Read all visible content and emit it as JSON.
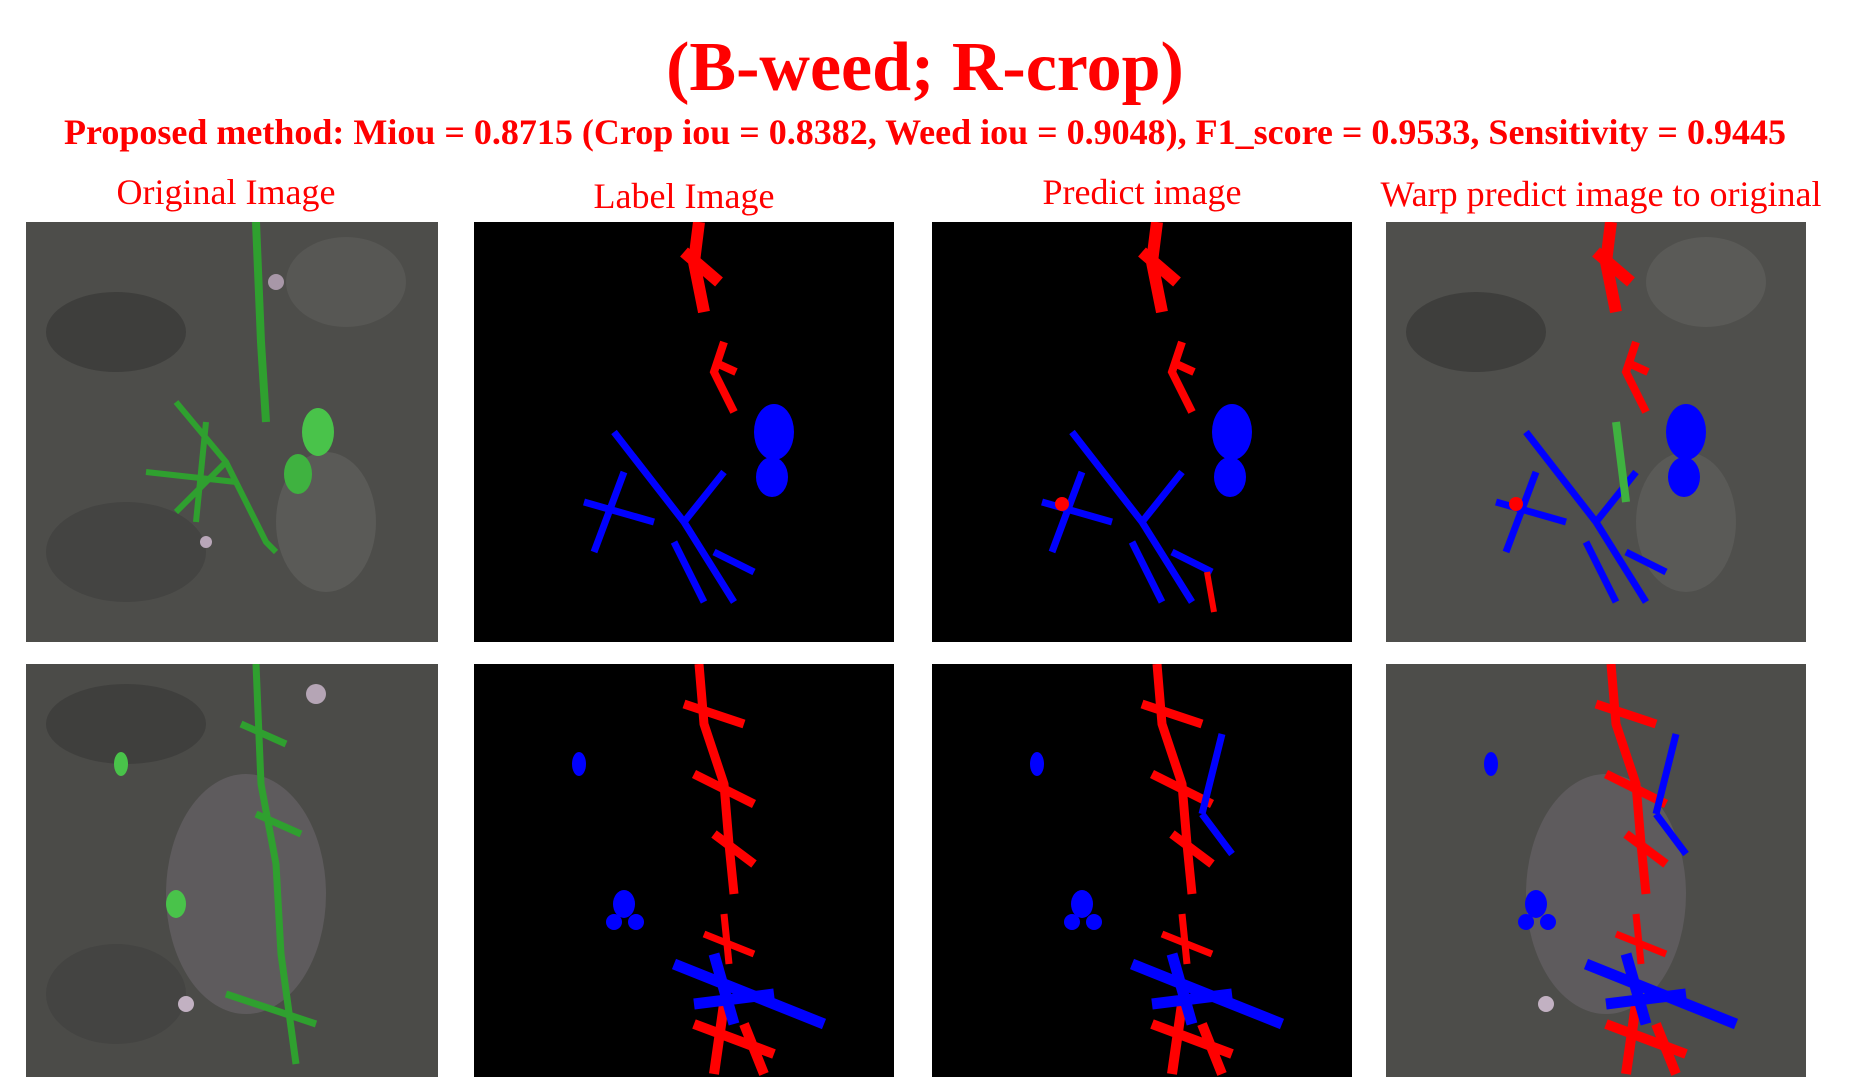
{
  "header": {
    "title": "(B-weed; R-crop)",
    "metrics": "Proposed method: Miou = 0.8715 (Crop iou = 0.8382, Weed iou = 0.9048), F1_score = 0.9533, Sensitivity = 0.9445"
  },
  "columns": [
    {
      "label": "Original Image"
    },
    {
      "label": "Label Image"
    },
    {
      "label": "Predict image"
    },
    {
      "label": "Warp predict image to original"
    }
  ],
  "legend_colors": {
    "weed": "#0000ff",
    "crop": "#ff0000",
    "plant_green": "#2fa02f",
    "soil": "#4a4a48",
    "mask_background": "#000000"
  }
}
